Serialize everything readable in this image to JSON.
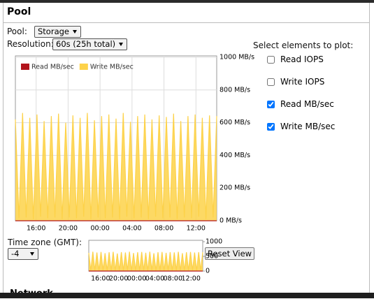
{
  "panel": {
    "title": "Pool"
  },
  "controls": {
    "pool_label": "Pool:",
    "pool_value": "Storage",
    "resolution_label": "Resolution:",
    "resolution_value": "60s (25h total)",
    "plot_label": "Select elements to plot:",
    "checkboxes": [
      {
        "label": "Read IOPS",
        "checked": false
      },
      {
        "label": "Write IOPS",
        "checked": false
      },
      {
        "label": "Read MB/sec",
        "checked": true
      },
      {
        "label": "Write MB/sec",
        "checked": true
      }
    ],
    "timezone_label": "Time zone (GMT):",
    "timezone_value": "-4",
    "reset_button": "Reset View"
  },
  "chart_data": [
    {
      "type": "area",
      "legend": "upper left",
      "grid": true,
      "x": [
        13.4,
        13.85,
        14.3,
        14.75,
        15.2,
        15.65,
        16.1,
        16.55,
        17,
        17.45,
        17.9,
        18.35,
        18.8,
        19.25,
        19.7,
        20.15,
        20.6,
        21.05,
        21.5,
        21.95,
        22.4,
        22.85,
        23.3,
        23.75,
        24.2,
        24.65,
        25.1,
        25.55,
        26,
        26.45,
        26.9,
        27.35,
        27.8,
        28.25,
        28.7,
        29.15,
        29.6,
        30.05,
        30.5,
        30.95,
        31.4,
        31.85,
        32.3,
        32.75,
        33.2,
        33.65,
        34.1,
        34.55,
        35,
        35.45,
        35.9,
        36.35,
        36.8,
        37.25,
        37.7,
        38.15,
        38.6
      ],
      "series": [
        {
          "name": "Read MB/sec",
          "color": "#b2141c",
          "values": [
            0,
            0,
            0,
            0,
            0,
            0,
            0,
            0,
            0,
            0,
            0,
            0,
            0,
            0,
            0,
            0,
            0,
            0,
            0,
            0,
            0,
            0,
            0,
            0,
            0,
            0,
            0,
            0,
            0,
            0,
            0,
            0,
            0,
            0,
            0,
            0,
            0,
            0,
            0,
            0,
            0,
            0,
            0,
            0,
            0,
            0,
            0,
            0,
            0,
            0,
            0,
            0,
            0,
            0,
            0,
            0,
            0
          ]
        },
        {
          "name": "Write MB/sec",
          "color": "#fdd249",
          "values": [
            620,
            15,
            660,
            20,
            630,
            10,
            650,
            25,
            610,
            15,
            640,
            20,
            655,
            10,
            600,
            20,
            645,
            15,
            630,
            25,
            660,
            10,
            615,
            20,
            640,
            15,
            650,
            20,
            625,
            10,
            660,
            25,
            605,
            15,
            640,
            20,
            650,
            10,
            620,
            25,
            645,
            15,
            635,
            20,
            655,
            10,
            610,
            20,
            640,
            15,
            650,
            25,
            630,
            10,
            645,
            20,
            640
          ]
        }
      ],
      "xlim": [
        13.4,
        38.6
      ],
      "xticks": [
        {
          "value": 16,
          "label": "16:00"
        },
        {
          "value": 20,
          "label": "20:00"
        },
        {
          "value": 24,
          "label": "00:00"
        },
        {
          "value": 28,
          "label": "04:00"
        },
        {
          "value": 32,
          "label": "08:00"
        },
        {
          "value": 36,
          "label": "12:00"
        }
      ],
      "ylim": [
        0,
        1000
      ],
      "yticks": [
        {
          "value": 0,
          "label": "0 MB/s"
        },
        {
          "value": 200,
          "label": "200 MB/s"
        },
        {
          "value": 400,
          "label": "400 MB/s"
        },
        {
          "value": 600,
          "label": "600 MB/s"
        },
        {
          "value": 800,
          "label": "800 MB/s"
        },
        {
          "value": 1000,
          "label": "1000 MB/s"
        }
      ]
    },
    {
      "type": "area",
      "overview_of": "chart_data.0",
      "xlim": [
        13.4,
        38.6
      ],
      "xticks": [
        {
          "value": 16,
          "label": "16:00"
        },
        {
          "value": 20,
          "label": "20:00"
        },
        {
          "value": 24,
          "label": "00:00"
        },
        {
          "value": 28,
          "label": "04:00"
        },
        {
          "value": 32,
          "label": "08:00"
        },
        {
          "value": 36,
          "label": "12:00"
        }
      ],
      "ylim": [
        0,
        1000
      ],
      "yticks": [
        0,
        500,
        1000
      ]
    }
  ],
  "next_section": "Network"
}
